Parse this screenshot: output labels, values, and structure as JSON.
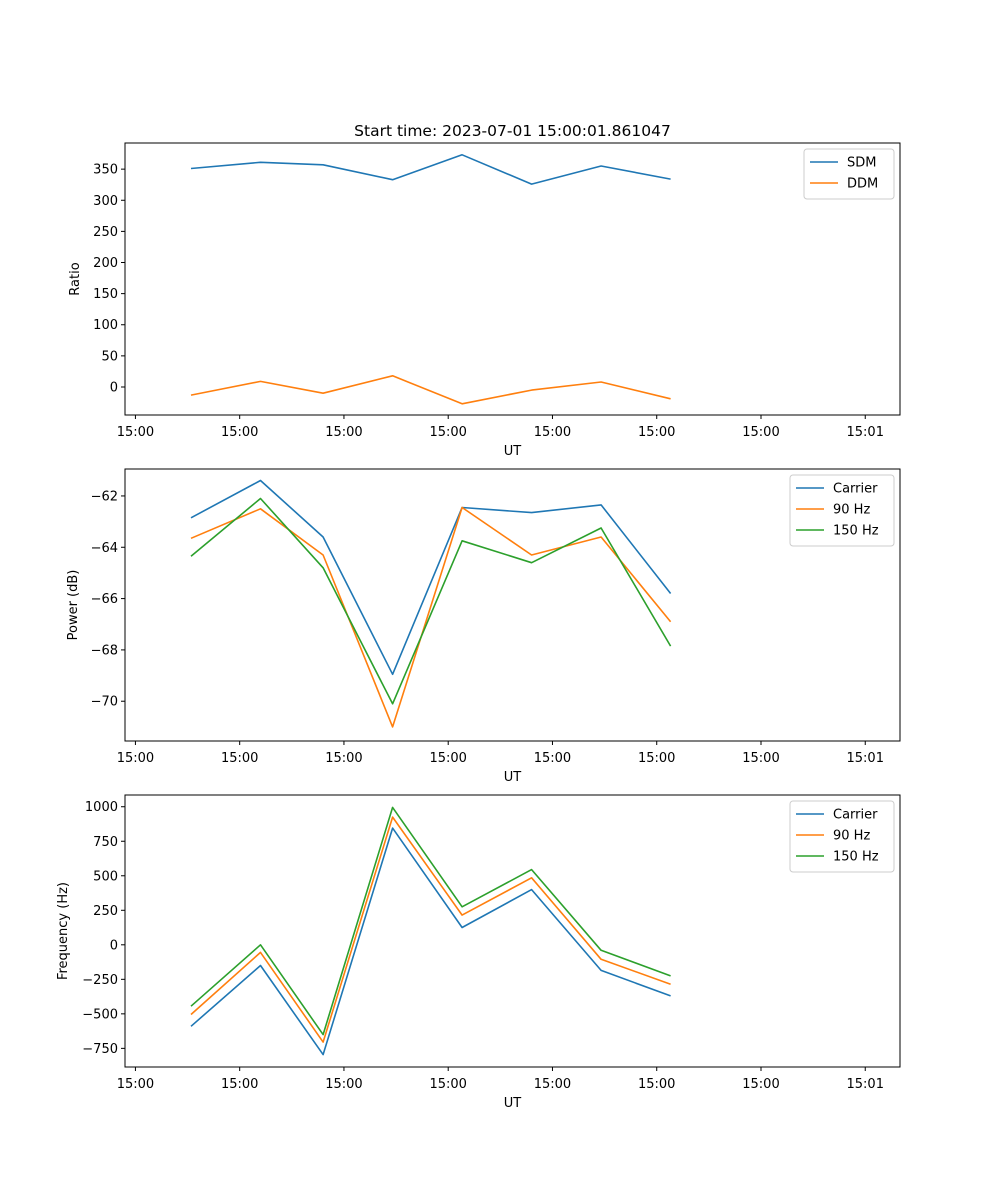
{
  "title": "Start time: 2023-07-01 15:00:01.861047",
  "chart_data": [
    {
      "type": "line",
      "title": "Start time: 2023-07-01 15:00:01.861047",
      "xlabel": "UT",
      "ylabel": "Ratio",
      "xlim": [
        -0.065,
        1.05
      ],
      "ylim": [
        -45,
        392
      ],
      "x_ticks": [
        -0.05,
        0.1,
        0.25,
        0.4,
        0.55,
        0.7,
        0.85,
        1.0
      ],
      "x_tick_labels": [
        "15:00",
        "15:00",
        "15:00",
        "15:00",
        "15:00",
        "15:00",
        "15:00",
        "15:01"
      ],
      "y_ticks": [
        0,
        50,
        100,
        150,
        200,
        250,
        300,
        350
      ],
      "y_tick_labels": [
        "0",
        "50",
        "100",
        "150",
        "200",
        "250",
        "300",
        "350"
      ],
      "x": [
        0.03,
        0.13,
        0.22,
        0.32,
        0.42,
        0.52,
        0.62,
        0.72
      ],
      "series": [
        {
          "name": "SDM",
          "color": "#1f77b4",
          "values": [
            351,
            361,
            357,
            333,
            373,
            326,
            355,
            334
          ]
        },
        {
          "name": "DDM",
          "color": "#ff7f0e",
          "values": [
            -13,
            9,
            -10,
            18,
            -27,
            -5,
            8,
            -19
          ]
        }
      ],
      "legend": "top-right",
      "grid": false
    },
    {
      "type": "line",
      "title": "",
      "xlabel": "UT",
      "ylabel": "Power (dB)",
      "xlim": [
        -0.065,
        1.05
      ],
      "ylim": [
        -71.55,
        -60.95
      ],
      "x_ticks": [
        -0.05,
        0.1,
        0.25,
        0.4,
        0.55,
        0.7,
        0.85,
        1.0
      ],
      "x_tick_labels": [
        "15:00",
        "15:00",
        "15:00",
        "15:00",
        "15:00",
        "15:00",
        "15:00",
        "15:01"
      ],
      "y_ticks": [
        -70,
        -68,
        -66,
        -64,
        -62
      ],
      "y_tick_labels": [
        "−70",
        "−68",
        "−66",
        "−64",
        "−62"
      ],
      "x": [
        0.03,
        0.13,
        0.22,
        0.32,
        0.42,
        0.52,
        0.62,
        0.72
      ],
      "series": [
        {
          "name": "Carrier",
          "color": "#1f77b4",
          "values": [
            -62.85,
            -61.4,
            -63.6,
            -68.95,
            -62.45,
            -62.65,
            -62.35,
            -65.8
          ]
        },
        {
          "name": "90 Hz",
          "color": "#ff7f0e",
          "values": [
            -63.65,
            -62.5,
            -64.3,
            -71.0,
            -62.45,
            -64.3,
            -63.6,
            -66.9
          ]
        },
        {
          "name": "150 Hz",
          "color": "#2ca02c",
          "values": [
            -64.35,
            -62.1,
            -64.8,
            -70.1,
            -63.75,
            -64.6,
            -63.25,
            -67.85
          ]
        }
      ],
      "legend": "top-right",
      "grid": false
    },
    {
      "type": "line",
      "title": "",
      "xlabel": "UT",
      "ylabel": "Frequency (Hz)",
      "xlim": [
        -0.065,
        1.05
      ],
      "ylim": [
        -885,
        1085
      ],
      "x_ticks": [
        -0.05,
        0.1,
        0.25,
        0.4,
        0.55,
        0.7,
        0.85,
        1.0
      ],
      "x_tick_labels": [
        "15:00",
        "15:00",
        "15:00",
        "15:00",
        "15:00",
        "15:00",
        "15:00",
        "15:01"
      ],
      "y_ticks": [
        -750,
        -500,
        -250,
        0,
        250,
        500,
        750,
        1000
      ],
      "y_tick_labels": [
        "−750",
        "−500",
        "−250",
        "0",
        "250",
        "500",
        "750",
        "1000"
      ],
      "x": [
        0.03,
        0.13,
        0.22,
        0.32,
        0.42,
        0.52,
        0.62,
        0.72
      ],
      "series": [
        {
          "name": "Carrier",
          "color": "#1f77b4",
          "values": [
            -590,
            -150,
            -795,
            845,
            125,
            400,
            -185,
            -370
          ]
        },
        {
          "name": "90 Hz",
          "color": "#ff7f0e",
          "values": [
            -505,
            -55,
            -705,
            925,
            215,
            485,
            -105,
            -285
          ]
        },
        {
          "name": "150 Hz",
          "color": "#2ca02c",
          "values": [
            -445,
            0,
            -650,
            995,
            275,
            545,
            -40,
            -225
          ]
        }
      ],
      "legend": "top-right",
      "grid": false
    }
  ]
}
